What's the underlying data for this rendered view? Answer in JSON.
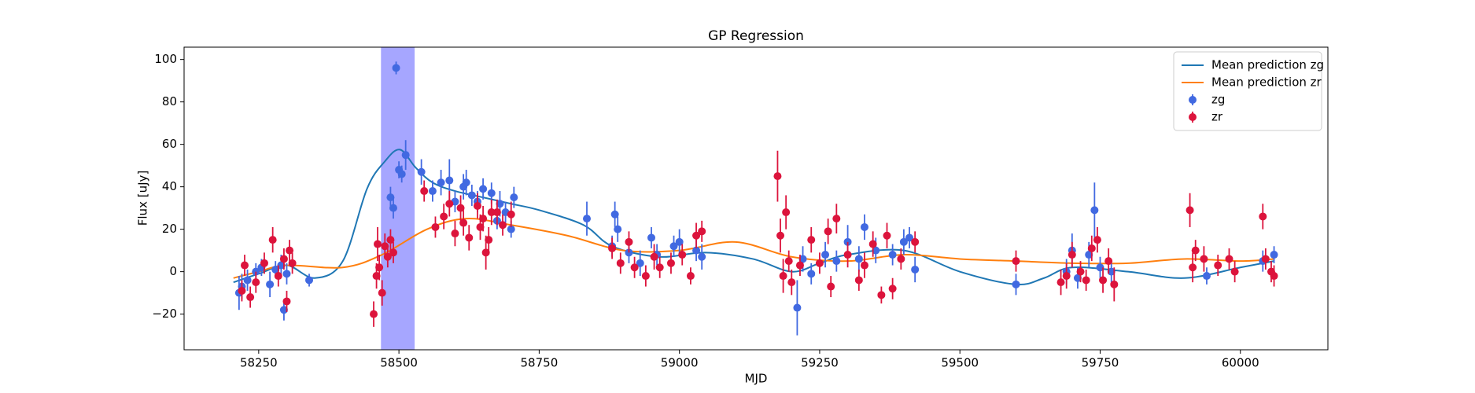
{
  "chart_data": {
    "type": "line",
    "title": "GP Regression",
    "x_label": "MJD",
    "y_label": "Flux [uJy]",
    "xlim": [
      58117,
      60156
    ],
    "ylim": [
      -36.8,
      105.8
    ],
    "xticks": [
      58250,
      58500,
      58750,
      59000,
      59250,
      59500,
      59750,
      60000
    ],
    "yticks": [
      {
        "value": -20,
        "label": "−20"
      },
      0,
      20,
      40,
      60,
      80,
      100
    ],
    "legend": "upper right",
    "shaded_region": {
      "x": [
        58468,
        58528
      ],
      "color": "#0000ff",
      "alpha": 0.35
    },
    "series": [
      {
        "name": "Mean prediction zg",
        "type": "line",
        "color": "#1f77b4",
        "x": [
          58205,
          58250,
          58300,
          58350,
          58400,
          58443,
          58475,
          58502,
          58530,
          58560,
          58600,
          58650,
          58700,
          58750,
          58829,
          58880,
          58963,
          59047,
          59131,
          59200,
          59250,
          59300,
          59400,
          59500,
          59600,
          59650,
          59700,
          59800,
          59900,
          60000,
          60060
        ],
        "values": [
          -5,
          -1,
          3,
          -3,
          5,
          39,
          52,
          57.5,
          49,
          42,
          38,
          35,
          32,
          29,
          22,
          12,
          7,
          9,
          6,
          0,
          4,
          8,
          10,
          0,
          -6,
          -3,
          2,
          0,
          -3,
          2,
          5
        ]
      },
      {
        "name": "Mean prediction zr",
        "type": "line",
        "color": "#ff7f0e",
        "x": [
          58205,
          58250,
          58300,
          58400,
          58470,
          58550,
          58620,
          58700,
          58800,
          58900,
          59000,
          59100,
          59200,
          59300,
          59400,
          59500,
          59600,
          59700,
          59800,
          59900,
          60000,
          60060
        ],
        "values": [
          -3,
          0,
          3,
          2,
          8,
          20,
          25,
          22,
          17,
          10,
          10,
          14,
          7,
          5,
          8,
          6,
          5,
          4,
          4,
          6,
          5,
          6
        ]
      },
      {
        "name": "zg",
        "type": "errorbar",
        "color": "#4169e1",
        "x": [
          58215,
          58220,
          58230,
          58245,
          58255,
          58270,
          58280,
          58290,
          58295,
          58300,
          58340,
          58485,
          58490,
          58500,
          58505,
          58495,
          58512,
          58540,
          58560,
          58575,
          58590,
          58600,
          58615,
          58620,
          58630,
          58640,
          58650,
          58665,
          58675,
          58680,
          58690,
          58700,
          58705,
          58835,
          58880,
          58885,
          58890,
          58910,
          58930,
          58950,
          58960,
          58990,
          59000,
          59030,
          59040,
          59210,
          59220,
          59235,
          59260,
          59280,
          59300,
          59320,
          59330,
          59350,
          59380,
          59400,
          59410,
          59420,
          59600,
          59690,
          59700,
          59710,
          59730,
          59740,
          59750,
          59770,
          59940,
          60040,
          60060
        ],
        "values": [
          -10,
          -7,
          -4,
          0,
          2,
          -6,
          1,
          3,
          -18,
          -1,
          -4,
          35,
          30,
          48,
          46,
          96,
          55,
          47,
          38,
          42,
          43,
          33,
          40,
          42,
          36,
          33,
          39,
          37,
          24,
          32,
          28,
          20,
          35,
          25,
          12,
          27,
          20,
          9,
          4,
          16,
          8,
          12,
          14,
          10,
          7,
          -17,
          6,
          -1,
          8,
          5,
          14,
          6,
          21,
          10,
          8,
          14,
          16,
          1,
          -6,
          0,
          10,
          -3,
          8,
          29,
          2,
          0,
          -2,
          5,
          8
        ],
        "errors": [
          8,
          6,
          5,
          4,
          4,
          6,
          4,
          5,
          5,
          5,
          3,
          5,
          5,
          4,
          4,
          3,
          7,
          6,
          5,
          6,
          10,
          5,
          6,
          6,
          5,
          5,
          5,
          5,
          4,
          6,
          5,
          4,
          5,
          8,
          5,
          6,
          6,
          5,
          6,
          5,
          5,
          5,
          6,
          5,
          6,
          13,
          6,
          5,
          6,
          5,
          8,
          6,
          6,
          6,
          5,
          6,
          5,
          6,
          5,
          6,
          8,
          5,
          6,
          13,
          5,
          5,
          4,
          5,
          4
        ]
      },
      {
        "name": "zr",
        "type": "errorbar",
        "color": "#dc143c",
        "x": [
          58220,
          58225,
          58235,
          58245,
          58260,
          58275,
          58285,
          58295,
          58300,
          58305,
          58310,
          58455,
          58460,
          58462,
          58465,
          58470,
          58475,
          58480,
          58485,
          58490,
          58545,
          58565,
          58580,
          58590,
          58600,
          58610,
          58615,
          58625,
          58640,
          58645,
          58650,
          58655,
          58660,
          58665,
          58675,
          58685,
          58700,
          58880,
          58895,
          58910,
          58920,
          58940,
          58955,
          58965,
          58985,
          59005,
          59020,
          59030,
          59040,
          59175,
          59180,
          59185,
          59190,
          59195,
          59200,
          59215,
          59235,
          59250,
          59265,
          59270,
          59280,
          59300,
          59320,
          59330,
          59345,
          59360,
          59370,
          59380,
          59395,
          59420,
          59600,
          59680,
          59690,
          59700,
          59715,
          59725,
          59735,
          59745,
          59755,
          59765,
          59775,
          59910,
          59915,
          59920,
          59935,
          59960,
          59980,
          59990,
          60040,
          60045,
          60055,
          60060
        ],
        "values": [
          -9,
          3,
          -12,
          -5,
          4,
          15,
          -2,
          6,
          -14,
          10,
          4,
          -20,
          -2,
          13,
          2,
          -10,
          12,
          7,
          15,
          9,
          38,
          21,
          26,
          32,
          18,
          30,
          23,
          16,
          31,
          21,
          25,
          9,
          15,
          28,
          28,
          22,
          27,
          11,
          4,
          14,
          2,
          -2,
          7,
          2,
          4,
          8,
          -2,
          17,
          19,
          45,
          17,
          -2,
          28,
          5,
          -5,
          3,
          15,
          4,
          19,
          -7,
          25,
          8,
          -4,
          3,
          13,
          -11,
          17,
          -8,
          6,
          14,
          5,
          -5,
          -2,
          8,
          0,
          -4,
          11,
          15,
          -4,
          5,
          -6,
          29,
          2,
          10,
          6,
          3,
          6,
          0,
          26,
          6,
          0,
          -2
        ],
        "errors": [
          5,
          5,
          5,
          5,
          5,
          6,
          5,
          5,
          5,
          5,
          5,
          6,
          6,
          8,
          6,
          6,
          6,
          5,
          5,
          5,
          5,
          5,
          6,
          6,
          6,
          6,
          6,
          6,
          6,
          6,
          6,
          8,
          6,
          6,
          6,
          5,
          6,
          5,
          5,
          5,
          5,
          5,
          6,
          5,
          5,
          5,
          4,
          6,
          5,
          12,
          8,
          8,
          8,
          5,
          6,
          5,
          6,
          5,
          6,
          5,
          7,
          6,
          5,
          6,
          6,
          4,
          6,
          5,
          5,
          5,
          5,
          6,
          6,
          6,
          5,
          5,
          6,
          6,
          6,
          6,
          8,
          8,
          7,
          5,
          6,
          5,
          5,
          5,
          6,
          5,
          5,
          5
        ]
      }
    ]
  }
}
